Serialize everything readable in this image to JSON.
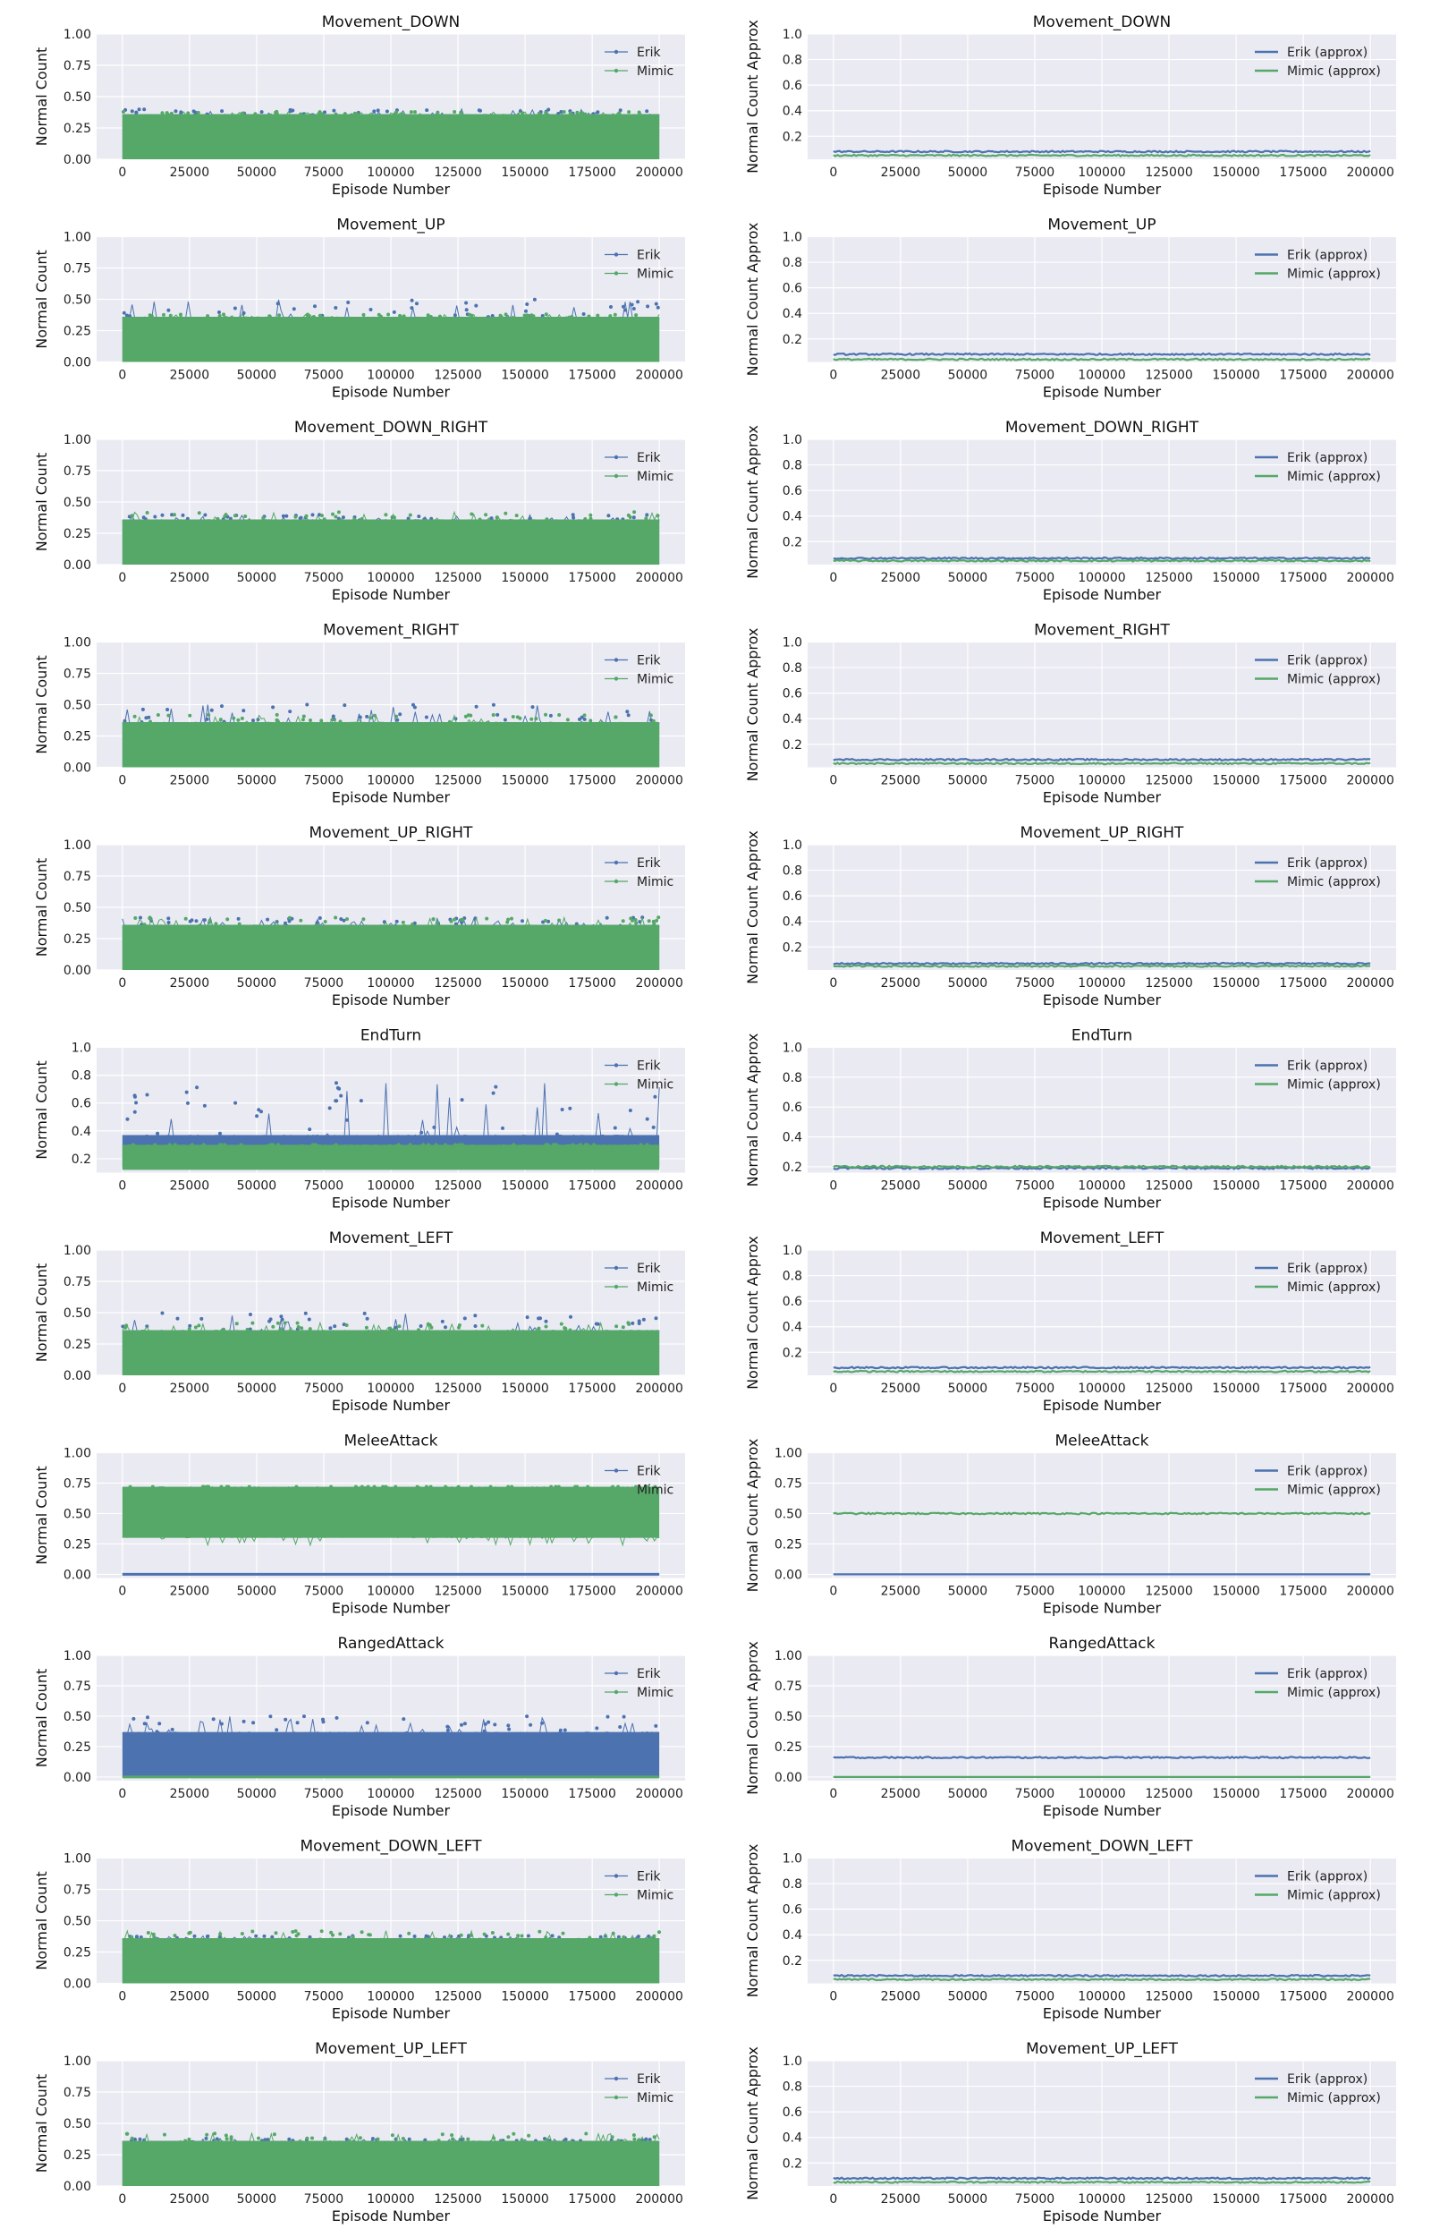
{
  "colors": {
    "erik": "#4c72b0",
    "mimic": "#55a868",
    "axes_bg": "#eaeaf2",
    "grid": "#ffffff"
  },
  "chart_data": [
    {
      "type": "line",
      "title": "Movement_DOWN",
      "xlabel": "Episode Number",
      "ylabel": "Normal Count",
      "xlim": [
        0,
        200000
      ],
      "ylim": [
        0,
        1.0
      ],
      "xticks": [
        0,
        25000,
        50000,
        75000,
        100000,
        125000,
        150000,
        175000,
        200000
      ],
      "yticks": [
        "0.00",
        "0.25",
        "0.50",
        "0.75",
        "1.00"
      ],
      "legend": "top-right",
      "series": [
        {
          "name": "Erik",
          "kind": "dense-band",
          "band": [
            0.0,
            0.36
          ],
          "spikes_max": 0.4
        },
        {
          "name": "Mimic",
          "kind": "dense-band",
          "band": [
            0.0,
            0.36
          ],
          "spikes_max": 0.38
        }
      ]
    },
    {
      "type": "line",
      "title": "Movement_DOWN",
      "xlabel": "Episode Number",
      "ylabel": "Normal Count Approx",
      "xlim": [
        0,
        200000
      ],
      "ylim": [
        0.02,
        1.0
      ],
      "xticks": [
        0,
        25000,
        50000,
        75000,
        100000,
        125000,
        150000,
        175000,
        200000
      ],
      "yticks": [
        "0.2",
        "0.4",
        "0.6",
        "0.8",
        "1.0"
      ],
      "legend": "top-right",
      "series": [
        {
          "name": "Erik (approx)",
          "kind": "approx-line",
          "value": 0.08
        },
        {
          "name": "Mimic (approx)",
          "kind": "approx-line",
          "value": 0.05
        }
      ]
    },
    {
      "type": "line",
      "title": "Movement_UP",
      "xlabel": "Episode Number",
      "ylabel": "Normal Count",
      "xlim": [
        0,
        200000
      ],
      "ylim": [
        0,
        1.0
      ],
      "xticks": [
        0,
        25000,
        50000,
        75000,
        100000,
        125000,
        150000,
        175000,
        200000
      ],
      "yticks": [
        "0.00",
        "0.25",
        "0.50",
        "0.75",
        "1.00"
      ],
      "legend": "top-right",
      "series": [
        {
          "name": "Erik",
          "kind": "dense-band",
          "band": [
            0.0,
            0.36
          ],
          "spikes_max": 0.5
        },
        {
          "name": "Mimic",
          "kind": "dense-band",
          "band": [
            0.0,
            0.36
          ],
          "spikes_max": 0.38
        }
      ]
    },
    {
      "type": "line",
      "title": "Movement_UP",
      "xlabel": "Episode Number",
      "ylabel": "Normal Count Approx",
      "xlim": [
        0,
        200000
      ],
      "ylim": [
        0.02,
        1.0
      ],
      "xticks": [
        0,
        25000,
        50000,
        75000,
        100000,
        125000,
        150000,
        175000,
        200000
      ],
      "yticks": [
        "0.2",
        "0.4",
        "0.6",
        "0.8",
        "1.0"
      ],
      "legend": "top-right",
      "series": [
        {
          "name": "Erik (approx)",
          "kind": "approx-line",
          "value": 0.08
        },
        {
          "name": "Mimic (approx)",
          "kind": "approx-line",
          "value": 0.04
        }
      ]
    },
    {
      "type": "line",
      "title": "Movement_DOWN_RIGHT",
      "xlabel": "Episode Number",
      "ylabel": "Normal Count",
      "xlim": [
        0,
        200000
      ],
      "ylim": [
        0,
        1.0
      ],
      "xticks": [
        0,
        25000,
        50000,
        75000,
        100000,
        125000,
        150000,
        175000,
        200000
      ],
      "yticks": [
        "0.00",
        "0.25",
        "0.50",
        "0.75",
        "1.00"
      ],
      "legend": "top-right",
      "series": [
        {
          "name": "Erik",
          "kind": "dense-band",
          "band": [
            0.0,
            0.36
          ],
          "spikes_max": 0.4
        },
        {
          "name": "Mimic",
          "kind": "dense-band",
          "band": [
            0.0,
            0.36
          ],
          "spikes_max": 0.42
        }
      ]
    },
    {
      "type": "line",
      "title": "Movement_DOWN_RIGHT",
      "xlabel": "Episode Number",
      "ylabel": "Normal Count Approx",
      "xlim": [
        0,
        200000
      ],
      "ylim": [
        0.02,
        1.0
      ],
      "xticks": [
        0,
        25000,
        50000,
        75000,
        100000,
        125000,
        150000,
        175000,
        200000
      ],
      "yticks": [
        "0.2",
        "0.4",
        "0.6",
        "0.8",
        "1.0"
      ],
      "legend": "top-right",
      "series": [
        {
          "name": "Erik (approx)",
          "kind": "approx-line",
          "value": 0.07
        },
        {
          "name": "Mimic (approx)",
          "kind": "approx-line",
          "value": 0.05
        }
      ]
    },
    {
      "type": "line",
      "title": "Movement_RIGHT",
      "xlabel": "Episode Number",
      "ylabel": "Normal Count",
      "xlim": [
        0,
        200000
      ],
      "ylim": [
        0,
        1.0
      ],
      "xticks": [
        0,
        25000,
        50000,
        75000,
        100000,
        125000,
        150000,
        175000,
        200000
      ],
      "yticks": [
        "0.00",
        "0.25",
        "0.50",
        "0.75",
        "1.00"
      ],
      "legend": "top-right",
      "series": [
        {
          "name": "Erik",
          "kind": "dense-band",
          "band": [
            0.0,
            0.36
          ],
          "spikes_max": 0.5
        },
        {
          "name": "Mimic",
          "kind": "dense-band",
          "band": [
            0.0,
            0.36
          ],
          "spikes_max": 0.42
        }
      ]
    },
    {
      "type": "line",
      "title": "Movement_RIGHT",
      "xlabel": "Episode Number",
      "ylabel": "Normal Count Approx",
      "xlim": [
        0,
        200000
      ],
      "ylim": [
        0.02,
        1.0
      ],
      "xticks": [
        0,
        25000,
        50000,
        75000,
        100000,
        125000,
        150000,
        175000,
        200000
      ],
      "yticks": [
        "0.2",
        "0.4",
        "0.6",
        "0.8",
        "1.0"
      ],
      "legend": "top-right",
      "series": [
        {
          "name": "Erik (approx)",
          "kind": "approx-line",
          "value": 0.08
        },
        {
          "name": "Mimic (approx)",
          "kind": "approx-line",
          "value": 0.05
        }
      ]
    },
    {
      "type": "line",
      "title": "Movement_UP_RIGHT",
      "xlabel": "Episode Number",
      "ylabel": "Normal Count",
      "xlim": [
        0,
        200000
      ],
      "ylim": [
        0,
        1.0
      ],
      "xticks": [
        0,
        25000,
        50000,
        75000,
        100000,
        125000,
        150000,
        175000,
        200000
      ],
      "yticks": [
        "0.00",
        "0.25",
        "0.50",
        "0.75",
        "1.00"
      ],
      "legend": "top-right",
      "series": [
        {
          "name": "Erik",
          "kind": "dense-band",
          "band": [
            0.0,
            0.36
          ],
          "spikes_max": 0.42
        },
        {
          "name": "Mimic",
          "kind": "dense-band",
          "band": [
            0.0,
            0.36
          ],
          "spikes_max": 0.42
        }
      ]
    },
    {
      "type": "line",
      "title": "Movement_UP_RIGHT",
      "xlabel": "Episode Number",
      "ylabel": "Normal Count Approx",
      "xlim": [
        0,
        200000
      ],
      "ylim": [
        0.02,
        1.0
      ],
      "xticks": [
        0,
        25000,
        50000,
        75000,
        100000,
        125000,
        150000,
        175000,
        200000
      ],
      "yticks": [
        "0.2",
        "0.4",
        "0.6",
        "0.8",
        "1.0"
      ],
      "legend": "top-right",
      "series": [
        {
          "name": "Erik (approx)",
          "kind": "approx-line",
          "value": 0.07
        },
        {
          "name": "Mimic (approx)",
          "kind": "approx-line",
          "value": 0.05
        }
      ]
    },
    {
      "type": "line",
      "title": "EndTurn",
      "xlabel": "Episode Number",
      "ylabel": "Normal Count",
      "xlim": [
        0,
        200000
      ],
      "ylim": [
        0.1,
        1.0
      ],
      "xticks": [
        0,
        25000,
        50000,
        75000,
        100000,
        125000,
        150000,
        175000,
        200000
      ],
      "yticks": [
        "0.2",
        "0.4",
        "0.6",
        "0.8",
        "1.0"
      ],
      "legend": "top-right",
      "series": [
        {
          "name": "Erik",
          "kind": "dense-band",
          "band": [
            0.14,
            0.37
          ],
          "spikes_max": 0.75
        },
        {
          "name": "Mimic",
          "kind": "dense-band",
          "band": [
            0.12,
            0.3
          ],
          "spikes_max": 0.3
        }
      ]
    },
    {
      "type": "line",
      "title": "EndTurn",
      "xlabel": "Episode Number",
      "ylabel": "Normal Count Approx",
      "xlim": [
        0,
        200000
      ],
      "ylim": [
        0.16,
        1.0
      ],
      "xticks": [
        0,
        25000,
        50000,
        75000,
        100000,
        125000,
        150000,
        175000,
        200000
      ],
      "yticks": [
        "0.2",
        "0.4",
        "0.6",
        "0.8",
        "1.0"
      ],
      "legend": "top-right",
      "series": [
        {
          "name": "Erik (approx)",
          "kind": "approx-line",
          "value": 0.19
        },
        {
          "name": "Mimic (approx)",
          "kind": "approx-line",
          "value": 0.2
        }
      ]
    },
    {
      "type": "line",
      "title": "Movement_LEFT",
      "xlabel": "Episode Number",
      "ylabel": "Normal Count",
      "xlim": [
        0,
        200000
      ],
      "ylim": [
        0,
        1.0
      ],
      "xticks": [
        0,
        25000,
        50000,
        75000,
        100000,
        125000,
        150000,
        175000,
        200000
      ],
      "yticks": [
        "0.00",
        "0.25",
        "0.50",
        "0.75",
        "1.00"
      ],
      "legend": "top-right",
      "series": [
        {
          "name": "Erik",
          "kind": "dense-band",
          "band": [
            0.0,
            0.36
          ],
          "spikes_max": 0.5
        },
        {
          "name": "Mimic",
          "kind": "dense-band",
          "band": [
            0.0,
            0.36
          ],
          "spikes_max": 0.42
        }
      ]
    },
    {
      "type": "line",
      "title": "Movement_LEFT",
      "xlabel": "Episode Number",
      "ylabel": "Normal Count Approx",
      "xlim": [
        0,
        200000
      ],
      "ylim": [
        0.02,
        1.0
      ],
      "xticks": [
        0,
        25000,
        50000,
        75000,
        100000,
        125000,
        150000,
        175000,
        200000
      ],
      "yticks": [
        "0.2",
        "0.4",
        "0.6",
        "0.8",
        "1.0"
      ],
      "legend": "top-right",
      "series": [
        {
          "name": "Erik (approx)",
          "kind": "approx-line",
          "value": 0.08
        },
        {
          "name": "Mimic (approx)",
          "kind": "approx-line",
          "value": 0.05
        }
      ]
    },
    {
      "type": "line",
      "title": "MeleeAttack",
      "xlabel": "Episode Number",
      "ylabel": "Normal Count",
      "xlim": [
        0,
        200000
      ],
      "ylim": [
        -0.03,
        1.0
      ],
      "xticks": [
        0,
        25000,
        50000,
        75000,
        100000,
        125000,
        150000,
        175000,
        200000
      ],
      "yticks": [
        "0.00",
        "0.25",
        "0.50",
        "0.75",
        "1.00"
      ],
      "legend": "top-right",
      "series": [
        {
          "name": "Erik",
          "kind": "flat-line",
          "value": 0.0
        },
        {
          "name": "Mimic",
          "kind": "dense-band",
          "band": [
            0.3,
            0.72
          ],
          "spikes_max": 0.72,
          "spikes_min": 0.24
        }
      ]
    },
    {
      "type": "line",
      "title": "MeleeAttack",
      "xlabel": "Episode Number",
      "ylabel": "Normal Count Approx",
      "xlim": [
        0,
        200000
      ],
      "ylim": [
        -0.03,
        1.0
      ],
      "xticks": [
        0,
        25000,
        50000,
        75000,
        100000,
        125000,
        150000,
        175000,
        200000
      ],
      "yticks": [
        "0.00",
        "0.25",
        "0.50",
        "0.75",
        "1.00"
      ],
      "legend": "top-right",
      "series": [
        {
          "name": "Erik (approx)",
          "kind": "approx-line",
          "value": 0.0
        },
        {
          "name": "Mimic (approx)",
          "kind": "approx-line",
          "value": 0.5
        }
      ]
    },
    {
      "type": "line",
      "title": "RangedAttack",
      "xlabel": "Episode Number",
      "ylabel": "Normal Count",
      "xlim": [
        0,
        200000
      ],
      "ylim": [
        -0.03,
        1.0
      ],
      "xticks": [
        0,
        25000,
        50000,
        75000,
        100000,
        125000,
        150000,
        175000,
        200000
      ],
      "yticks": [
        "0.00",
        "0.25",
        "0.50",
        "0.75",
        "1.00"
      ],
      "legend": "top-right",
      "series": [
        {
          "name": "Erik",
          "kind": "dense-band",
          "band": [
            0.0,
            0.37
          ],
          "spikes_max": 0.5
        },
        {
          "name": "Mimic",
          "kind": "flat-line",
          "value": 0.0
        }
      ]
    },
    {
      "type": "line",
      "title": "RangedAttack",
      "xlabel": "Episode Number",
      "ylabel": "Normal Count Approx",
      "xlim": [
        0,
        200000
      ],
      "ylim": [
        -0.03,
        1.0
      ],
      "xticks": [
        0,
        25000,
        50000,
        75000,
        100000,
        125000,
        150000,
        175000,
        200000
      ],
      "yticks": [
        "0.00",
        "0.25",
        "0.50",
        "0.75",
        "1.00"
      ],
      "legend": "top-right",
      "series": [
        {
          "name": "Erik (approx)",
          "kind": "approx-line",
          "value": 0.16
        },
        {
          "name": "Mimic (approx)",
          "kind": "approx-line",
          "value": 0.0
        }
      ]
    },
    {
      "type": "line",
      "title": "Movement_DOWN_LEFT",
      "xlabel": "Episode Number",
      "ylabel": "Normal Count",
      "xlim": [
        0,
        200000
      ],
      "ylim": [
        0,
        1.0
      ],
      "xticks": [
        0,
        25000,
        50000,
        75000,
        100000,
        125000,
        150000,
        175000,
        200000
      ],
      "yticks": [
        "0.00",
        "0.25",
        "0.50",
        "0.75",
        "1.00"
      ],
      "legend": "top-right",
      "series": [
        {
          "name": "Erik",
          "kind": "dense-band",
          "band": [
            0.0,
            0.36
          ],
          "spikes_max": 0.38
        },
        {
          "name": "Mimic",
          "kind": "dense-band",
          "band": [
            0.0,
            0.36
          ],
          "spikes_max": 0.42
        }
      ]
    },
    {
      "type": "line",
      "title": "Movement_DOWN_LEFT",
      "xlabel": "Episode Number",
      "ylabel": "Normal Count Approx",
      "xlim": [
        0,
        200000
      ],
      "ylim": [
        0.02,
        1.0
      ],
      "xticks": [
        0,
        25000,
        50000,
        75000,
        100000,
        125000,
        150000,
        175000,
        200000
      ],
      "yticks": [
        "0.2",
        "0.4",
        "0.6",
        "0.8",
        "1.0"
      ],
      "legend": "top-right",
      "series": [
        {
          "name": "Erik (approx)",
          "kind": "approx-line",
          "value": 0.08
        },
        {
          "name": "Mimic (approx)",
          "kind": "approx-line",
          "value": 0.05
        }
      ]
    },
    {
      "type": "line",
      "title": "Movement_UP_LEFT",
      "xlabel": "Episode Number",
      "ylabel": "Normal Count",
      "xlim": [
        0,
        200000
      ],
      "ylim": [
        0,
        1.0
      ],
      "xticks": [
        0,
        25000,
        50000,
        75000,
        100000,
        125000,
        150000,
        175000,
        200000
      ],
      "yticks": [
        "0.00",
        "0.25",
        "0.50",
        "0.75",
        "1.00"
      ],
      "legend": "top-right",
      "series": [
        {
          "name": "Erik",
          "kind": "dense-band",
          "band": [
            0.0,
            0.36
          ],
          "spikes_max": 0.38
        },
        {
          "name": "Mimic",
          "kind": "dense-band",
          "band": [
            0.0,
            0.36
          ],
          "spikes_max": 0.42
        }
      ]
    },
    {
      "type": "line",
      "title": "Movement_UP_LEFT",
      "xlabel": "Episode Number",
      "ylabel": "Normal Count Approx",
      "xlim": [
        0,
        200000
      ],
      "ylim": [
        0.02,
        1.0
      ],
      "xticks": [
        0,
        25000,
        50000,
        75000,
        100000,
        125000,
        150000,
        175000,
        200000
      ],
      "yticks": [
        "0.2",
        "0.4",
        "0.6",
        "0.8",
        "1.0"
      ],
      "legend": "top-right",
      "series": [
        {
          "name": "Erik (approx)",
          "kind": "approx-line",
          "value": 0.08
        },
        {
          "name": "Mimic (approx)",
          "kind": "approx-line",
          "value": 0.05
        }
      ]
    }
  ]
}
